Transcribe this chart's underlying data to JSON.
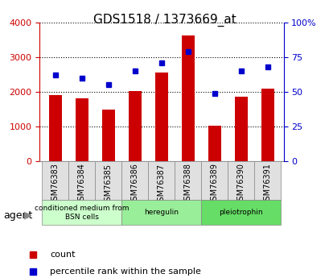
{
  "title": "GDS1518 / 1373669_at",
  "categories": [
    "GSM76383",
    "GSM76384",
    "GSM76385",
    "GSM76386",
    "GSM76387",
    "GSM76388",
    "GSM76389",
    "GSM76390",
    "GSM76391"
  ],
  "counts": [
    1900,
    1800,
    1480,
    2020,
    2560,
    3620,
    1020,
    1860,
    2080
  ],
  "percentiles": [
    62,
    60,
    55,
    65,
    71,
    79,
    49,
    65,
    68
  ],
  "ylim_left": [
    0,
    4000
  ],
  "ylim_right": [
    0,
    100
  ],
  "yticks_left": [
    0,
    1000,
    2000,
    3000,
    4000
  ],
  "yticks_right": [
    0,
    25,
    50,
    75,
    100
  ],
  "yticklabels_right": [
    "0",
    "25",
    "50",
    "75",
    "100%"
  ],
  "bar_color": "#cc0000",
  "dot_color": "#0000cc",
  "grid_color": "#000000",
  "bg_color": "#ffffff",
  "plot_bg": "#ffffff",
  "agent_groups": [
    {
      "label": "conditioned medium from\nBSN cells",
      "start": 0,
      "end": 3,
      "color": "#ccffcc"
    },
    {
      "label": "heregulin",
      "start": 3,
      "end": 6,
      "color": "#99ee99"
    },
    {
      "label": "pleiotrophin",
      "start": 6,
      "end": 9,
      "color": "#66dd66"
    }
  ],
  "legend_count_label": "count",
  "legend_pct_label": "percentile rank within the sample",
  "agent_label": "agent",
  "left_axis_color": "#cc0000",
  "right_axis_color": "#0000cc"
}
